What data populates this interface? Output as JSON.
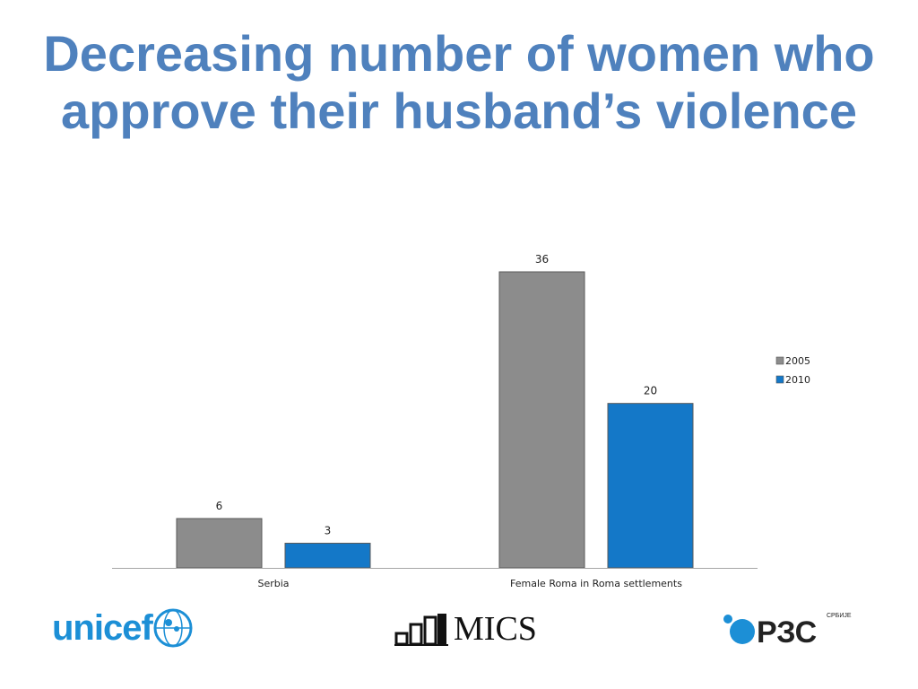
{
  "title": {
    "line1": "Decreasing number of women who",
    "line2": "approve their husband’s violence"
  },
  "chart_data": {
    "type": "bar",
    "categories": [
      "Serbia",
      "Female Roma in Roma settlements"
    ],
    "series": [
      {
        "name": "2005",
        "values": [
          6,
          36
        ],
        "color": "#8c8c8c"
      },
      {
        "name": "2010",
        "values": [
          3,
          20
        ],
        "color": "#1478c8"
      }
    ],
    "ylim": [
      0,
      36
    ],
    "grid": false,
    "legend_position": "right",
    "data_labels": true
  },
  "logos": {
    "unicef": "unicef",
    "mics": "MICS",
    "rzs_text": "РЗС",
    "rzs_small": "СРБИЈЕ"
  }
}
